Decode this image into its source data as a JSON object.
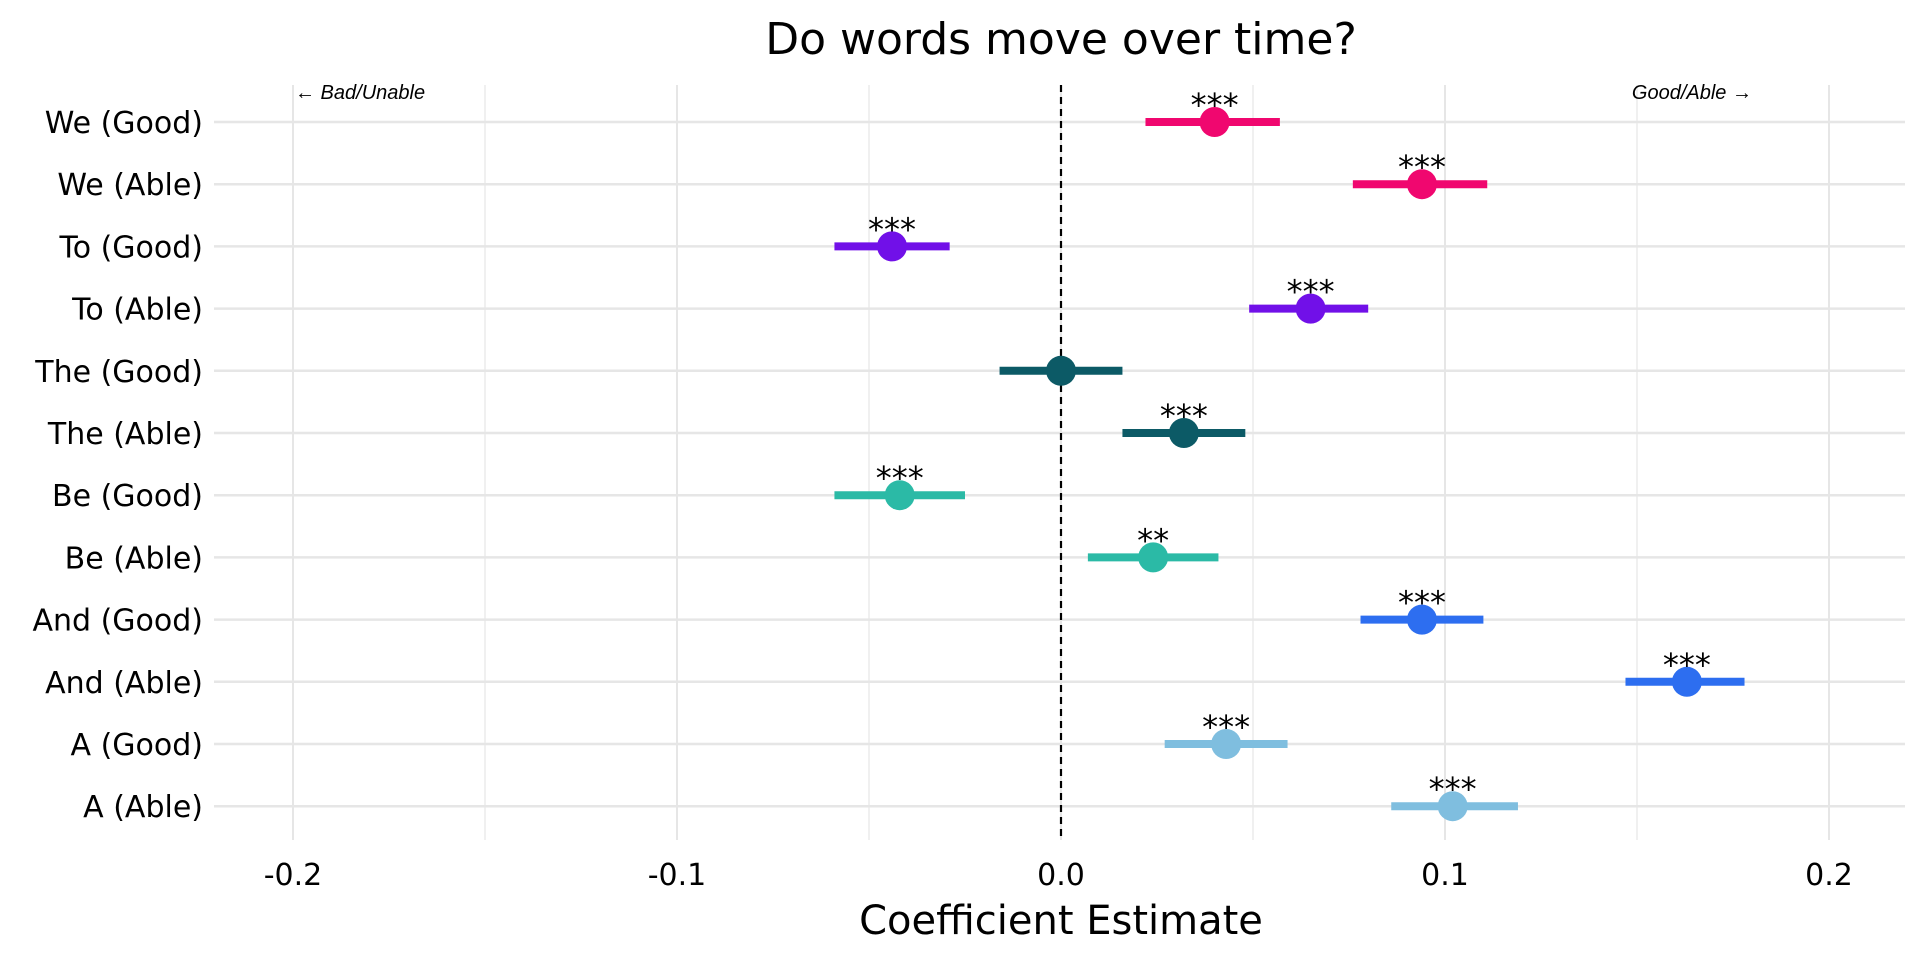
{
  "chart_data": {
    "type": "scatter",
    "subtype": "coefficient-plot",
    "title": "Do words move over time?",
    "xlabel": "Coefficient Estimate",
    "ylabel": "",
    "xlim": [
      -0.22,
      0.22
    ],
    "xticks": [
      {
        "value": -0.2,
        "label": "-0.2"
      },
      {
        "value": -0.1,
        "label": "-0.1"
      },
      {
        "value": 0.0,
        "label": "0.0"
      },
      {
        "value": 0.1,
        "label": "0.1"
      },
      {
        "value": 0.2,
        "label": "0.2"
      }
    ],
    "minor_gridlines": [
      -0.15,
      -0.05,
      0.05,
      0.15
    ],
    "grid": true,
    "reference_line": {
      "x": 0,
      "style": "dashed"
    },
    "annotations": {
      "left": "← Bad/Unable",
      "right": "Good/Able →"
    },
    "rows": [
      {
        "label": "We (Good)",
        "estimate": 0.04,
        "low": 0.022,
        "high": 0.057,
        "sig": "***",
        "color": "#F0076F"
      },
      {
        "label": "We (Able)",
        "estimate": 0.094,
        "low": 0.076,
        "high": 0.111,
        "sig": "***",
        "color": "#F0076F"
      },
      {
        "label": "To (Good)",
        "estimate": -0.044,
        "low": -0.059,
        "high": -0.029,
        "sig": "***",
        "color": "#7110E8"
      },
      {
        "label": "To (Able)",
        "estimate": 0.065,
        "low": 0.049,
        "high": 0.08,
        "sig": "***",
        "color": "#7110E8"
      },
      {
        "label": "The (Good)",
        "estimate": 0.0,
        "low": -0.016,
        "high": 0.016,
        "sig": "",
        "color": "#0C5A66"
      },
      {
        "label": "The (Able)",
        "estimate": 0.032,
        "low": 0.016,
        "high": 0.048,
        "sig": "***",
        "color": "#0C5A66"
      },
      {
        "label": "Be (Good)",
        "estimate": -0.042,
        "low": -0.059,
        "high": -0.025,
        "sig": "***",
        "color": "#2BBAA6"
      },
      {
        "label": "Be (Able)",
        "estimate": 0.024,
        "low": 0.007,
        "high": 0.041,
        "sig": "**",
        "color": "#2BBAA6"
      },
      {
        "label": "And (Good)",
        "estimate": 0.094,
        "low": 0.078,
        "high": 0.11,
        "sig": "***",
        "color": "#2D6EF0"
      },
      {
        "label": "And (Able)",
        "estimate": 0.163,
        "low": 0.147,
        "high": 0.178,
        "sig": "***",
        "color": "#2D6EF0"
      },
      {
        "label": "A (Good)",
        "estimate": 0.043,
        "low": 0.027,
        "high": 0.059,
        "sig": "***",
        "color": "#7FBEDF"
      },
      {
        "label": "A (Able)",
        "estimate": 0.102,
        "low": 0.086,
        "high": 0.119,
        "sig": "***",
        "color": "#7FBEDF"
      }
    ]
  }
}
